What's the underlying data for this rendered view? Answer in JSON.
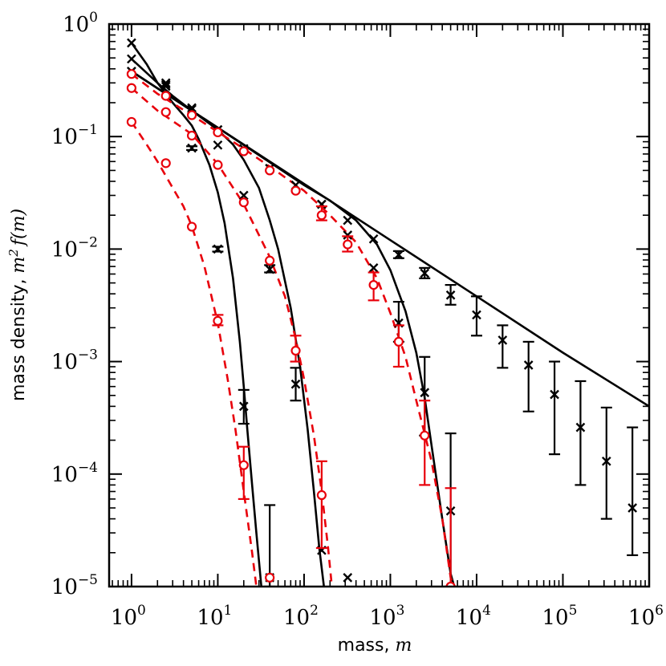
{
  "chart_data": {
    "type": "scatter",
    "title": "",
    "xlabel": {
      "text": "mass, ",
      "symbol": "m"
    },
    "ylabel": {
      "text": "mass density, ",
      "symbol": "m",
      "sup": "2",
      "fn": "f(m)"
    },
    "xscale": "log",
    "yscale": "log",
    "xlim": [
      0.55,
      1000000
    ],
    "ylim": [
      1e-05,
      1
    ],
    "x_ticks": [
      {
        "value": 1,
        "base": "10",
        "exp": "0"
      },
      {
        "value": 10,
        "base": "10",
        "exp": "1"
      },
      {
        "value": 100,
        "base": "10",
        "exp": "2"
      },
      {
        "value": 1000,
        "base": "10",
        "exp": "3"
      },
      {
        "value": 10000,
        "base": "10",
        "exp": "4"
      },
      {
        "value": 100000,
        "base": "10",
        "exp": "5"
      },
      {
        "value": 1000000,
        "base": "10",
        "exp": "6"
      }
    ],
    "y_ticks": [
      {
        "value": 1,
        "base": "10",
        "exp": "0"
      },
      {
        "value": 0.1,
        "base": "10",
        "exp": "−1"
      },
      {
        "value": 0.01,
        "base": "10",
        "exp": "−2"
      },
      {
        "value": 0.001,
        "base": "10",
        "exp": "−3"
      },
      {
        "value": 0.0001,
        "base": "10",
        "exp": "−4"
      },
      {
        "value": 1e-05,
        "base": "10",
        "exp": "−5"
      }
    ],
    "grid": false,
    "legend": "none",
    "colors": {
      "black": "#000000",
      "red": "#e8000b"
    },
    "lines": [
      {
        "color": "#000000",
        "dash": "solid",
        "points": [
          [
            1,
            0.38
          ],
          [
            10,
            0.12
          ],
          [
            100,
            0.038
          ],
          [
            1000,
            0.012
          ],
          [
            10000,
            0.0038
          ],
          [
            100000,
            0.0012
          ],
          [
            1000000,
            0.0004
          ]
        ]
      },
      {
        "color": "#000000",
        "dash": "solid",
        "points": [
          [
            1,
            0.68
          ],
          [
            1.5,
            0.44
          ],
          [
            2,
            0.3
          ],
          [
            3,
            0.2
          ],
          [
            4,
            0.155
          ],
          [
            5,
            0.125
          ],
          [
            6,
            0.095
          ],
          [
            8,
            0.056
          ],
          [
            10,
            0.032
          ],
          [
            12,
            0.017
          ],
          [
            15,
            0.0055
          ],
          [
            18,
            0.0015
          ],
          [
            20,
            0.0006
          ],
          [
            22,
            0.00025
          ],
          [
            25,
            8e-05
          ],
          [
            28,
            3e-05
          ],
          [
            32,
            1e-05
          ]
        ]
      },
      {
        "color": "#000000",
        "dash": "solid",
        "points": [
          [
            1,
            0.49
          ],
          [
            2,
            0.3
          ],
          [
            3,
            0.23
          ],
          [
            5,
            0.17
          ],
          [
            10,
            0.115
          ],
          [
            15,
            0.085
          ],
          [
            20,
            0.062
          ],
          [
            30,
            0.035
          ],
          [
            40,
            0.018
          ],
          [
            50,
            0.01
          ],
          [
            70,
            0.003
          ],
          [
            90,
            0.0009
          ],
          [
            110,
            0.00025
          ],
          [
            130,
            7e-05
          ],
          [
            150,
            2.2e-05
          ],
          [
            170,
            1e-05
          ]
        ]
      },
      {
        "color": "#000000",
        "dash": "solid",
        "points": [
          [
            1,
            0.38
          ],
          [
            10,
            0.12
          ],
          [
            100,
            0.037
          ],
          [
            200,
            0.027
          ],
          [
            400,
            0.018
          ],
          [
            700,
            0.011
          ],
          [
            1000,
            0.0065
          ],
          [
            1500,
            0.0028
          ],
          [
            2000,
            0.0012
          ],
          [
            2500,
            0.00048
          ],
          [
            3000,
            0.00018
          ],
          [
            4000,
            4e-05
          ],
          [
            5000,
            1.3e-05
          ],
          [
            5500,
            1e-05
          ]
        ]
      },
      {
        "color": "#e8000b",
        "dash": "dashed",
        "points": [
          [
            1,
            0.135
          ],
          [
            1.5,
            0.085
          ],
          [
            2,
            0.06
          ],
          [
            3,
            0.035
          ],
          [
            4,
            0.024
          ],
          [
            5,
            0.016
          ],
          [
            7,
            0.007
          ],
          [
            10,
            0.0022
          ],
          [
            13,
            0.0007
          ],
          [
            16,
            0.00025
          ],
          [
            20,
            7e-05
          ],
          [
            25,
            2e-05
          ],
          [
            28,
            1e-05
          ]
        ]
      },
      {
        "color": "#e8000b",
        "dash": "dashed",
        "points": [
          [
            1,
            0.27
          ],
          [
            2,
            0.17
          ],
          [
            5,
            0.105
          ],
          [
            10,
            0.057
          ],
          [
            20,
            0.025
          ],
          [
            40,
            0.0085
          ],
          [
            60,
            0.0038
          ],
          [
            80,
            0.0016
          ],
          [
            100,
            0.0007
          ],
          [
            130,
            0.00022
          ],
          [
            160,
            7e-05
          ],
          [
            190,
            2.2e-05
          ],
          [
            210,
            1e-05
          ]
        ]
      },
      {
        "color": "#e8000b",
        "dash": "dashed",
        "points": [
          [
            1,
            0.36
          ],
          [
            2,
            0.24
          ],
          [
            5,
            0.155
          ],
          [
            10,
            0.11
          ],
          [
            20,
            0.078
          ],
          [
            50,
            0.048
          ],
          [
            100,
            0.033
          ],
          [
            200,
            0.02
          ],
          [
            400,
            0.0115
          ],
          [
            700,
            0.0055
          ],
          [
            1000,
            0.0027
          ],
          [
            1500,
            0.0011
          ],
          [
            2000,
            0.00045
          ],
          [
            3000,
            0.00013
          ],
          [
            4000,
            4e-05
          ],
          [
            5000,
            1.2e-05
          ],
          [
            5500,
            1e-05
          ]
        ]
      }
    ],
    "series": [
      {
        "marker": "x",
        "color": "#000000",
        "points": [
          {
            "x": 1,
            "y": 0.68
          },
          {
            "x": 2.5,
            "y": 0.3
          },
          {
            "x": 5,
            "y": 0.079,
            "err": [
              0.076,
              0.082
            ]
          },
          {
            "x": 10,
            "y": 0.01,
            "err": [
              0.0095,
              0.0105
            ]
          },
          {
            "x": 20,
            "y": 0.0004,
            "err": [
              0.00028,
              0.00056
            ]
          },
          {
            "x": 40,
            "y": 1.2e-05,
            "err": [
              1e-05,
              5.3e-05
            ]
          }
        ]
      },
      {
        "marker": "x",
        "color": "#000000",
        "points": [
          {
            "x": 1,
            "y": 0.49
          },
          {
            "x": 2.5,
            "y": 0.29
          },
          {
            "x": 5,
            "y": 0.18
          },
          {
            "x": 10,
            "y": 0.084
          },
          {
            "x": 20,
            "y": 0.03
          },
          {
            "x": 40,
            "y": 0.0066,
            "err": [
              0.0062,
              0.0072
            ]
          },
          {
            "x": 80,
            "y": 0.00063,
            "err": [
              0.00045,
              0.00088
            ]
          },
          {
            "x": 160,
            "y": 2.1e-05
          },
          {
            "x": 320,
            "y": 1.2e-05
          }
        ]
      },
      {
        "marker": "x",
        "color": "#000000",
        "points": [
          {
            "x": 1,
            "y": 0.38
          },
          {
            "x": 2.5,
            "y": 0.28
          },
          {
            "x": 5,
            "y": 0.175
          },
          {
            "x": 10,
            "y": 0.115
          },
          {
            "x": 20,
            "y": 0.078
          },
          {
            "x": 40,
            "y": 0.052
          },
          {
            "x": 80,
            "y": 0.037
          },
          {
            "x": 160,
            "y": 0.025
          },
          {
            "x": 320,
            "y": 0.018
          },
          {
            "x": 640,
            "y": 0.0123
          },
          {
            "x": 1250,
            "y": 0.0089,
            "err": [
              0.0083,
              0.0096
            ]
          },
          {
            "x": 2500,
            "y": 0.0061,
            "err": [
              0.0055,
              0.0068
            ]
          },
          {
            "x": 5000,
            "y": 0.0039,
            "err": [
              0.0032,
              0.0048
            ]
          },
          {
            "x": 10000,
            "y": 0.0026,
            "err": [
              0.0017,
              0.0038
            ]
          },
          {
            "x": 20000,
            "y": 0.00155,
            "err": [
              0.00088,
              0.0021
            ]
          },
          {
            "x": 40000,
            "y": 0.00093,
            "err": [
              0.00036,
              0.0015
            ]
          },
          {
            "x": 80000,
            "y": 0.00051,
            "err": [
              0.00015,
              0.001
            ]
          },
          {
            "x": 160000,
            "y": 0.00026,
            "err": [
              8e-05,
              0.00067
            ]
          },
          {
            "x": 320000,
            "y": 0.00013,
            "err": [
              4e-05,
              0.00039
            ]
          },
          {
            "x": 640000,
            "y": 5e-05,
            "err": [
              1.9e-05,
              0.00026
            ]
          }
        ]
      },
      {
        "marker": "x",
        "color": "#000000",
        "points": [
          {
            "x": 1,
            "y": 0.38
          },
          {
            "x": 10,
            "y": 0.115
          },
          {
            "x": 40,
            "y": 0.052
          },
          {
            "x": 160,
            "y": 0.025
          },
          {
            "x": 320,
            "y": 0.0133
          },
          {
            "x": 640,
            "y": 0.0068
          },
          {
            "x": 1250,
            "y": 0.0022,
            "err": [
              0.0015,
              0.0034
            ]
          },
          {
            "x": 2500,
            "y": 0.00053,
            "err": [
              0.00022,
              0.0011
            ]
          },
          {
            "x": 5000,
            "y": 4.7e-05,
            "err": [
              1e-05,
              0.00023
            ]
          }
        ]
      },
      {
        "marker": "o",
        "color": "#e8000b",
        "points": [
          {
            "x": 1,
            "y": 0.135
          },
          {
            "x": 2.5,
            "y": 0.058
          },
          {
            "x": 5,
            "y": 0.0158
          },
          {
            "x": 10,
            "y": 0.0023,
            "err": [
              0.0021,
              0.0026
            ]
          },
          {
            "x": 20,
            "y": 0.00012,
            "err": [
              6e-05,
              0.000175
            ]
          },
          {
            "x": 40,
            "y": 1.2e-05
          }
        ]
      },
      {
        "marker": "o",
        "color": "#e8000b",
        "points": [
          {
            "x": 1,
            "y": 0.27
          },
          {
            "x": 2.5,
            "y": 0.165
          },
          {
            "x": 5,
            "y": 0.102
          },
          {
            "x": 10,
            "y": 0.056
          },
          {
            "x": 20,
            "y": 0.026
          },
          {
            "x": 40,
            "y": 0.0079
          },
          {
            "x": 80,
            "y": 0.00125,
            "err": [
              0.001,
              0.0017
            ]
          },
          {
            "x": 160,
            "y": 6.5e-05,
            "err": [
              2.2e-05,
              0.00013
            ]
          }
        ]
      },
      {
        "marker": "o",
        "color": "#e8000b",
        "points": [
          {
            "x": 1,
            "y": 0.36
          },
          {
            "x": 2.5,
            "y": 0.23
          },
          {
            "x": 5,
            "y": 0.155
          },
          {
            "x": 10,
            "y": 0.109
          },
          {
            "x": 20,
            "y": 0.074
          },
          {
            "x": 40,
            "y": 0.05
          },
          {
            "x": 80,
            "y": 0.033
          },
          {
            "x": 160,
            "y": 0.02,
            "err": [
              0.018,
              0.024
            ]
          },
          {
            "x": 320,
            "y": 0.011,
            "err": [
              0.0095,
              0.013
            ]
          },
          {
            "x": 640,
            "y": 0.0048,
            "err": [
              0.0035,
              0.0062
            ]
          },
          {
            "x": 1250,
            "y": 0.0015,
            "err": [
              0.0009,
              0.0021
            ]
          },
          {
            "x": 2500,
            "y": 0.00022,
            "err": [
              8e-05,
              0.00045
            ]
          },
          {
            "x": 5000,
            "y": 1e-05,
            "err": [
              1e-05,
              7.5e-05
            ]
          }
        ]
      }
    ]
  }
}
